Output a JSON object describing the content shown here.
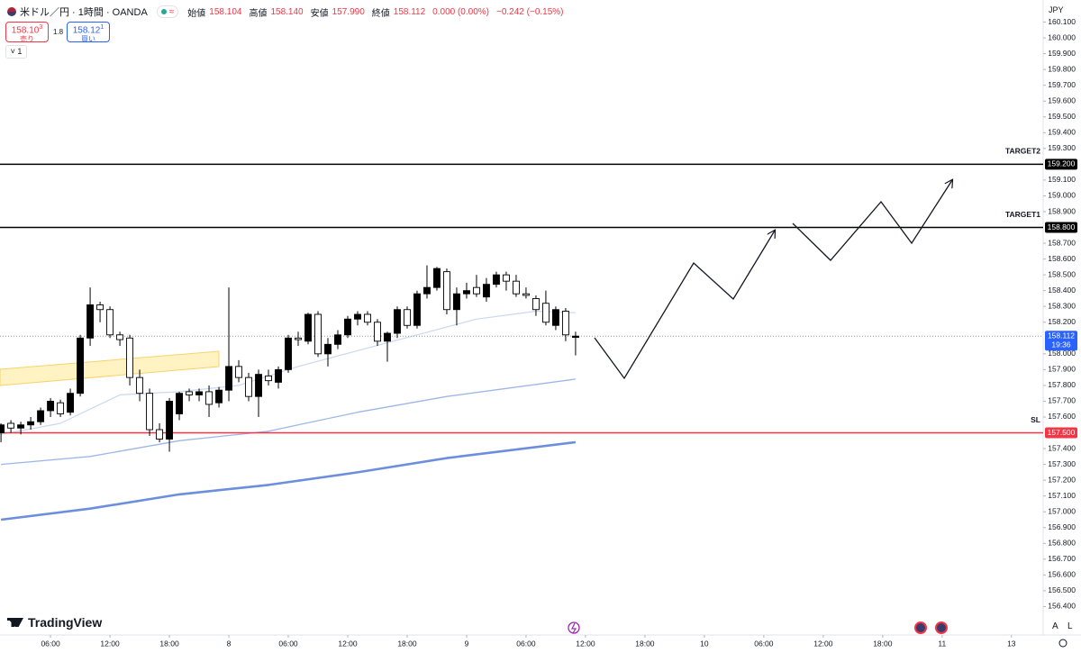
{
  "header": {
    "symbol": "米ドル／円 · 1時間 · OANDA",
    "open_label": "始値",
    "open": "158.104",
    "high_label": "高値",
    "high": "158.140",
    "low_label": "安値",
    "low": "157.990",
    "close_label": "終値",
    "close": "158.112",
    "change": "0.000 (0.00%)",
    "change2": "−0.242 (−0.15%)",
    "sell_price": "158.10",
    "sell_sup": "3",
    "sell_label": "売り",
    "spread": "1.8",
    "buy_price": "158.12",
    "buy_sup": "1",
    "buy_label": "買い",
    "indicators": "1",
    "currency": "JPY",
    "logo": "TradingView",
    "auto": "A",
    "log": "L"
  },
  "chart_data": {
    "type": "candlestick",
    "x": [
      1,
      2,
      3,
      4,
      5,
      6,
      7,
      8,
      9,
      10,
      11,
      12,
      13,
      14,
      15,
      16,
      17,
      18,
      19,
      20,
      21,
      22,
      23,
      24,
      25,
      26,
      27,
      28,
      29,
      30,
      31,
      32,
      33,
      34,
      35,
      36,
      37,
      38,
      39,
      40,
      41,
      42,
      43,
      44,
      45,
      46,
      47,
      48,
      49,
      50,
      51,
      52,
      53,
      54,
      55,
      56,
      57,
      58,
      59
    ],
    "open": [
      157.5,
      157.56,
      157.53,
      157.55,
      157.57,
      157.64,
      157.69,
      157.63,
      157.75,
      158.1,
      158.31,
      158.28,
      158.12,
      158.1,
      157.85,
      157.75,
      157.52,
      157.46,
      157.62,
      157.76,
      157.74,
      157.76,
      157.69,
      157.77,
      157.92,
      157.85,
      157.73,
      157.86,
      157.82,
      157.9,
      158.1,
      158.08,
      158.25,
      158.0,
      158.06,
      158.12,
      158.22,
      158.25,
      158.2,
      158.08,
      158.13,
      158.28,
      158.18,
      158.38,
      158.42,
      158.52,
      158.28,
      158.38,
      158.42,
      158.36,
      158.44,
      158.5,
      158.46,
      158.38,
      158.35,
      158.32,
      158.18,
      158.27,
      158.104
    ],
    "high": [
      157.56,
      157.58,
      157.57,
      157.6,
      157.66,
      157.72,
      157.71,
      157.78,
      158.12,
      158.42,
      158.33,
      158.3,
      158.14,
      158.12,
      157.9,
      157.78,
      157.56,
      157.72,
      157.76,
      157.78,
      157.78,
      157.8,
      157.79,
      158.42,
      157.96,
      157.88,
      157.9,
      157.9,
      157.92,
      158.12,
      158.14,
      158.26,
      158.27,
      158.1,
      158.15,
      158.24,
      158.27,
      158.27,
      158.22,
      158.14,
      158.3,
      158.3,
      158.4,
      158.56,
      158.55,
      158.54,
      158.42,
      158.45,
      158.5,
      158.48,
      158.52,
      158.52,
      158.5,
      158.42,
      158.37,
      158.4,
      158.3,
      158.29,
      158.14
    ],
    "low": [
      157.44,
      157.5,
      157.49,
      157.52,
      157.55,
      157.6,
      157.6,
      157.61,
      157.73,
      158.05,
      158.2,
      158.1,
      158.05,
      157.8,
      157.7,
      157.48,
      157.44,
      157.38,
      157.58,
      157.7,
      157.7,
      157.6,
      157.66,
      157.7,
      157.82,
      157.7,
      157.6,
      157.8,
      157.78,
      157.88,
      158.05,
      158.06,
      157.98,
      157.92,
      158.03,
      158.1,
      158.18,
      158.18,
      158.05,
      157.95,
      158.1,
      158.16,
      158.16,
      158.35,
      158.4,
      158.25,
      158.18,
      158.35,
      158.36,
      158.33,
      158.42,
      158.4,
      158.36,
      158.35,
      158.24,
      158.18,
      158.15,
      158.08,
      157.99
    ],
    "close": [
      157.55,
      157.53,
      157.55,
      157.57,
      157.64,
      157.7,
      157.62,
      157.75,
      158.1,
      158.31,
      158.28,
      158.12,
      158.09,
      157.85,
      157.75,
      157.52,
      157.46,
      157.7,
      157.75,
      157.74,
      157.76,
      157.68,
      157.77,
      157.92,
      157.85,
      157.73,
      157.87,
      157.83,
      157.9,
      158.1,
      158.09,
      158.25,
      158.0,
      158.06,
      158.12,
      158.22,
      158.25,
      158.2,
      158.08,
      158.13,
      158.28,
      158.18,
      158.38,
      158.42,
      158.54,
      158.28,
      158.38,
      158.4,
      158.38,
      158.44,
      158.5,
      158.46,
      158.38,
      158.37,
      158.28,
      158.2,
      158.28,
      158.12,
      158.112
    ],
    "up_color": "#000000",
    "down_color": "#ffffff",
    "lines": [
      {
        "color": "#c9d8f2",
        "width": 1.2,
        "x": [
          1,
          7,
          13,
          19,
          25,
          31,
          37,
          43,
          49,
          55,
          59
        ],
        "values": [
          157.49,
          157.56,
          157.74,
          157.76,
          157.8,
          157.92,
          158.02,
          158.12,
          158.22,
          158.27,
          158.26
        ]
      },
      {
        "color": "#9db6e8",
        "width": 1.3,
        "x": [
          1,
          10,
          19,
          28,
          37,
          46,
          59
        ],
        "values": [
          157.3,
          157.35,
          157.45,
          157.51,
          157.63,
          157.73,
          157.84
        ]
      },
      {
        "color": "#6b8fdc",
        "width": 2.6,
        "x": [
          1,
          10,
          19,
          28,
          37,
          46,
          59
        ],
        "values": [
          156.95,
          157.02,
          157.11,
          157.17,
          157.25,
          157.34,
          157.44
        ]
      }
    ],
    "levels": [
      {
        "label": "TARGET2",
        "value": 159.2,
        "value_label": "159.200",
        "color": "#000000"
      },
      {
        "label": "TARGET1",
        "value": 158.8,
        "value_label": "158.800",
        "color": "#000000"
      },
      {
        "label": "SL",
        "value": 157.5,
        "value_label": "157.500",
        "color": "#f23645"
      }
    ],
    "current_price": {
      "value": 158.112,
      "label": "158.112",
      "countdown": "19:36",
      "color": "#2962ff"
    },
    "xlim": [
      0.9,
      106.2
    ],
    "xticks": [
      {
        "value": 6,
        "label": "06:00"
      },
      {
        "value": 12,
        "label": "12:00"
      },
      {
        "value": 18,
        "label": "18:00"
      },
      {
        "value": 24,
        "label": "8"
      },
      {
        "value": 30,
        "label": "06:00"
      },
      {
        "value": 36,
        "label": "12:00"
      },
      {
        "value": 42,
        "label": "18:00"
      },
      {
        "value": 48,
        "label": "9"
      },
      {
        "value": 54,
        "label": "06:00"
      },
      {
        "value": 60,
        "label": "12:00"
      },
      {
        "value": 66,
        "label": "18:00"
      },
      {
        "value": 72,
        "label": "10"
      },
      {
        "value": 78,
        "label": "06:00"
      },
      {
        "value": 84,
        "label": "12:00"
      },
      {
        "value": 90,
        "label": "18:00"
      },
      {
        "value": 96,
        "label": "11"
      },
      {
        "value": 103,
        "label": "13"
      }
    ],
    "ylim": [
      156.22,
      160.24
    ],
    "yticks": [
      {
        "value": 156.4,
        "label": "156.400"
      },
      {
        "value": 156.5,
        "label": "156.500"
      },
      {
        "value": 156.6,
        "label": "156.600"
      },
      {
        "value": 156.7,
        "label": "156.700"
      },
      {
        "value": 156.8,
        "label": "156.800"
      },
      {
        "value": 156.9,
        "label": "156.900"
      },
      {
        "value": 157.0,
        "label": "157.000"
      },
      {
        "value": 157.1,
        "label": "157.100"
      },
      {
        "value": 157.2,
        "label": "157.200"
      },
      {
        "value": 157.3,
        "label": "157.300"
      },
      {
        "value": 157.4,
        "label": "157.400"
      },
      {
        "value": 157.6,
        "label": "157.600"
      },
      {
        "value": 157.7,
        "label": "157.700"
      },
      {
        "value": 157.8,
        "label": "157.800"
      },
      {
        "value": 157.9,
        "label": "157.900"
      },
      {
        "value": 158.0,
        "label": "158.000"
      },
      {
        "value": 158.2,
        "label": "158.200"
      },
      {
        "value": 158.3,
        "label": "158.300"
      },
      {
        "value": 158.4,
        "label": "158.400"
      },
      {
        "value": 158.5,
        "label": "158.500"
      },
      {
        "value": 158.6,
        "label": "158.600"
      },
      {
        "value": 158.7,
        "label": "158.700"
      },
      {
        "value": 158.9,
        "label": "158.900"
      },
      {
        "value": 159.0,
        "label": "159.000"
      },
      {
        "value": 159.1,
        "label": "159.100"
      },
      {
        "value": 159.3,
        "label": "159.300"
      },
      {
        "value": 159.4,
        "label": "159.400"
      },
      {
        "value": 159.5,
        "label": "159.500"
      },
      {
        "value": 159.6,
        "label": "159.600"
      },
      {
        "value": 159.7,
        "label": "159.700"
      },
      {
        "value": 159.8,
        "label": "159.800"
      },
      {
        "value": 159.9,
        "label": "159.900"
      },
      {
        "value": 160.0,
        "label": "160.000"
      },
      {
        "value": 160.1,
        "label": "160.100"
      }
    ],
    "grid": false
  }
}
